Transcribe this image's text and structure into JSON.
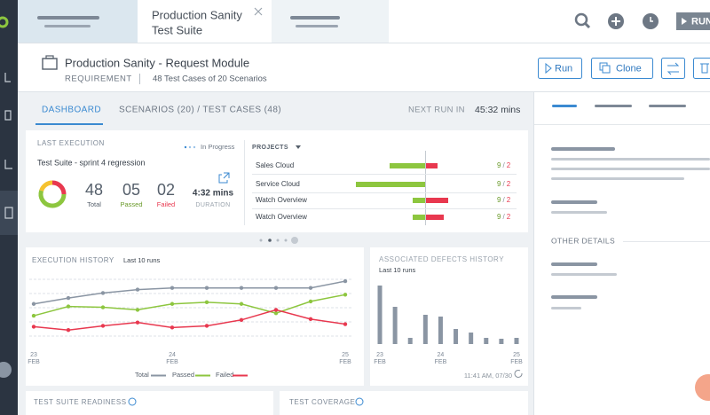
{
  "top_bar": {
    "active_tab": [
      "Production Sanity",
      "Test Suite"
    ],
    "run_button": "RUN"
  },
  "header": {
    "title": "Production Sanity - Request Module",
    "type": "REQUIREMENT",
    "summary": "48 Test Cases of 20 Scenarios",
    "buttons": [
      "Run",
      "Clone"
    ]
  },
  "nav": {
    "tabs": [
      "DASHBOARD",
      "SCENARIOS (20) / TEST CASES (48)"
    ],
    "next_run_label": "NEXT RUN IN",
    "next_run": "45:32 mins"
  },
  "last_execution": {
    "title": "LAST EXECUTION",
    "legend": "In Progress",
    "suite": "Test Suite - sprint 4 regression",
    "donut": [
      {
        "value": 25,
        "color": "#e8384f"
      },
      {
        "value": 55,
        "color": "#8dc63f"
      },
      {
        "value": 20,
        "color": "#f5c230"
      }
    ],
    "stats": [
      {
        "value": "48",
        "label": "Total",
        "color": "#555f6b"
      },
      {
        "value": "05",
        "label": "Passed",
        "color": "#6a9a2a"
      },
      {
        "value": "02",
        "label": "Failed",
        "color": "#e8384f"
      }
    ],
    "duration": "4:32 mins",
    "duration_label": "DURATION"
  },
  "projects": {
    "title": "PROJECTS",
    "rows": [
      {
        "name": "Sales Cloud",
        "passed_bar": 40,
        "failed_bar": 13,
        "passed": "9",
        "separator": "/",
        "failed": "2"
      },
      {
        "name": "Service Cloud",
        "passed_bar": 78,
        "failed_bar": 0,
        "passed": "9",
        "separator": "/",
        "failed": "2"
      },
      {
        "name": "Watch Overview",
        "passed_bar": 14,
        "failed_bar": 25,
        "passed": "9",
        "separator": "/",
        "failed": "2"
      },
      {
        "name": "Watch Overview",
        "passed_bar": 14,
        "failed_bar": 20,
        "passed": "9",
        "separator": "/",
        "failed": "2"
      }
    ]
  },
  "execution_history": {
    "type": "line",
    "title": "EXECUTION HISTORY",
    "subtitle": "Last 10 runs",
    "categories": [
      [
        "23",
        "FEB"
      ],
      null,
      null,
      null,
      [
        "24",
        "FEB"
      ],
      null,
      null,
      null,
      null,
      [
        "25",
        "FEB"
      ]
    ],
    "ylim": [
      0,
      100
    ],
    "grid": true,
    "series": [
      {
        "name": "Total",
        "color": "#8a95a3",
        "values": [
          55,
          62,
          68,
          72,
          74,
          74,
          74,
          74,
          74,
          82
        ]
      },
      {
        "name": "Passed",
        "color": "#8dc63f",
        "values": [
          41,
          52,
          51,
          48,
          55,
          57,
          55,
          44,
          58,
          66
        ]
      },
      {
        "name": "Failed",
        "color": "#e8384f",
        "values": [
          28,
          24,
          29,
          33,
          27,
          29,
          36,
          48,
          37,
          31
        ]
      }
    ]
  },
  "defects_history": {
    "type": "bar",
    "title": "ASSOCIATED DEFECTS HISTORY",
    "subtitle": "Last 10 runs",
    "categories": [
      [
        "23",
        "FEB"
      ],
      null,
      null,
      null,
      [
        "24",
        "FEB"
      ],
      null,
      null,
      null,
      null,
      [
        "25",
        "FEB"
      ]
    ],
    "values": [
      66,
      42,
      7,
      33,
      31,
      17,
      13,
      7,
      6,
      7
    ],
    "color": "#8a95a3",
    "ylim": [
      0,
      70
    ],
    "footer": "11:41 AM, 07/30"
  },
  "bottom_panels": [
    "TEST SUITE READINESS",
    "TEST COVERAGE"
  ],
  "details": {
    "section": "OTHER DETAILS"
  }
}
